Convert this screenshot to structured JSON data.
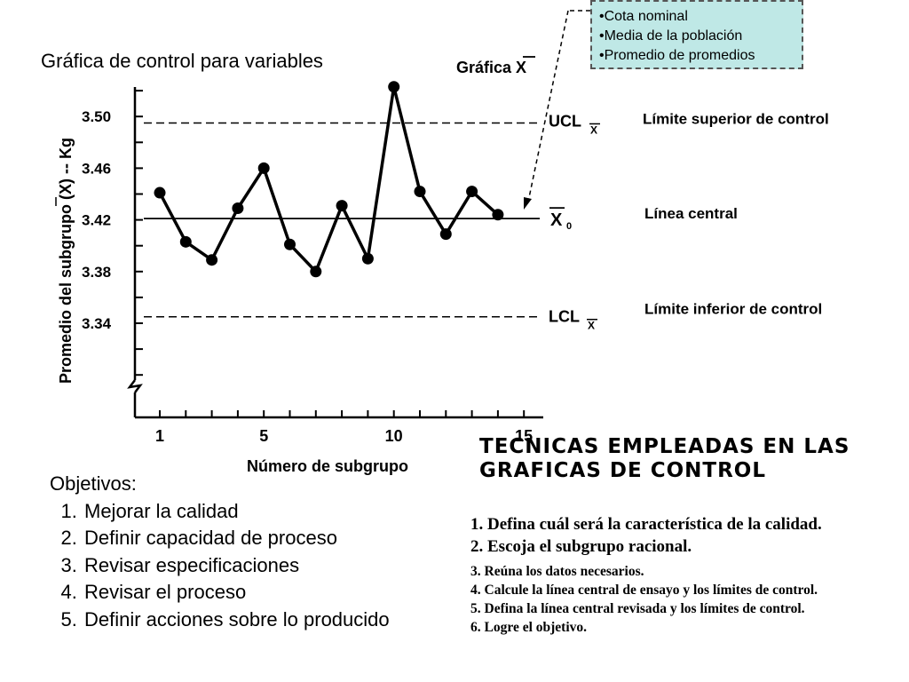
{
  "slide_title": "Gráfica de control para variables",
  "note_box": {
    "items": [
      "•Cota nominal",
      "•Media de la población",
      "•Promedio de promedios"
    ]
  },
  "chart_labels": {
    "chart_title": "Gráfica X",
    "ylabel": "Promedio del subgrupo (X) -- Kg",
    "xlabel": "Número de subgrupo",
    "ucl_symbol": "UCL",
    "ucl_sub": "X",
    "center_symbol": "X",
    "center_sub": "0",
    "lcl_symbol": "LCL",
    "lcl_sub": "X",
    "ucl_desc": "Límite superior de control",
    "center_desc": "Línea central",
    "lcl_desc": "Límite inferior de control"
  },
  "chart_data": {
    "type": "line",
    "title": "Gráfica X",
    "xlabel": "Número de subgrupo",
    "ylabel": "Promedio del subgrupo (X) -- Kg",
    "x": [
      1,
      2,
      3,
      4,
      5,
      6,
      7,
      8,
      9,
      10,
      11,
      12,
      13,
      14
    ],
    "y": [
      3.441,
      3.403,
      3.389,
      3.429,
      3.46,
      3.401,
      3.38,
      3.431,
      3.39,
      3.523,
      3.442,
      3.409,
      3.442,
      3.424
    ],
    "y_ticks": [
      3.34,
      3.38,
      3.42,
      3.46,
      3.5
    ],
    "y_tick_labels": [
      "3.34",
      "3.38",
      "3.42",
      "3.46",
      "3.50"
    ],
    "x_tick_labels": [
      {
        "x": 1,
        "label": "1"
      },
      {
        "x": 5,
        "label": "5"
      },
      {
        "x": 10,
        "label": "10"
      },
      {
        "x": 15,
        "label": "15"
      }
    ],
    "ucl": 3.495,
    "center": 3.421,
    "lcl": 3.345,
    "ylim": [
      3.34,
      3.52
    ],
    "xlim": [
      1,
      15
    ],
    "grid": false,
    "legend": "none"
  },
  "objectives": {
    "heading": "Objetivos:",
    "items": [
      "Mejorar la calidad",
      "Definir capacidad de proceso",
      "Revisar especificaciones",
      "Revisar el proceso",
      "Definir acciones sobre lo producido"
    ]
  },
  "techniques": {
    "title_line1": "TECNICAS EMPLEADAS EN LAS",
    "title_line2": "GRAFICAS DE CONTROL",
    "steps": [
      "1. Defina cuál será la característica  de la calidad.",
      "2. Escoja el subgrupo racional.",
      "3. Reúna los datos necesarios.",
      "4. Calcule la línea central de ensayo y los límites de control.",
      "5. Defina la línea central revisada y los límites de control.",
      "6. Logre el objetivo."
    ]
  }
}
